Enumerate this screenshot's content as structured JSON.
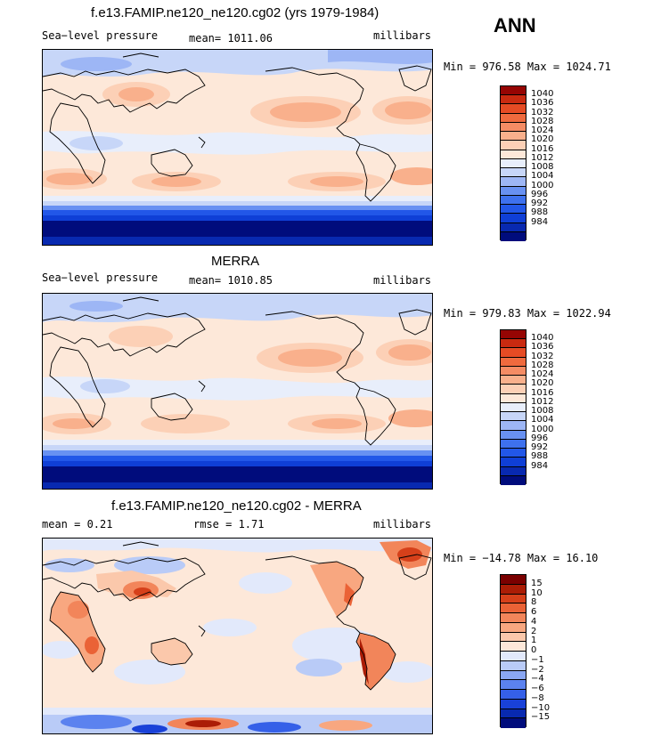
{
  "season": "ANN",
  "palette": {
    "model_obs": [
      "#000c7c",
      "#0829b0",
      "#0f3fd6",
      "#2257e8",
      "#3e71ee",
      "#6891f2",
      "#9db6f5",
      "#c7d6f8",
      "#e8eefb",
      "#fde8d9",
      "#fcd0b6",
      "#f9b08c",
      "#f58c64",
      "#ef6a3e",
      "#e54b24",
      "#c92a10",
      "#960503"
    ],
    "diff": [
      "#000c7c",
      "#0829b0",
      "#1941d8",
      "#3560e8",
      "#5b82ef",
      "#8aa7f3",
      "#b9cbf7",
      "#e2e9fb",
      "#fde8d9",
      "#fbc8ab",
      "#f8a780",
      "#f2855a",
      "#ea6236",
      "#d6401a",
      "#ab1d06",
      "#7a0000"
    ]
  },
  "panels": [
    {
      "title": "f.e13.FAMIP.ne120_ne120.cg02 (yrs 1979-1984)",
      "left_label": "Sea−level pressure",
      "mid_label": "mean= 1011.06",
      "units": "millibars",
      "minmax": "Min = 976.58 Max = 1024.71",
      "colorbar_labels": [
        "1040",
        "1036",
        "1032",
        "1028",
        "1024",
        "1020",
        "1016",
        "1012",
        "1008",
        "1004",
        "1000",
        "996",
        "992",
        "988",
        "984"
      ]
    },
    {
      "title": "MERRA",
      "left_label": "Sea−level pressure",
      "mid_label": "mean= 1010.85",
      "units": "millibars",
      "minmax": "Min = 979.83 Max = 1022.94",
      "colorbar_labels": [
        "1040",
        "1036",
        "1032",
        "1028",
        "1024",
        "1020",
        "1016",
        "1012",
        "1008",
        "1004",
        "1000",
        "996",
        "992",
        "988",
        "984"
      ]
    },
    {
      "title": "f.e13.FAMIP.ne120_ne120.cg02 - MERRA",
      "left_label": "mean =    0.21",
      "mid_label": "rmse =    1.71",
      "units": "millibars",
      "minmax": "Min = −14.78 Max =  16.10",
      "colorbar_labels": [
        "15",
        "10",
        "8",
        "6",
        "4",
        "2",
        "1",
        "0",
        "−1",
        "−2",
        "−4",
        "−6",
        "−8",
        "−10",
        "−15"
      ]
    }
  ]
}
